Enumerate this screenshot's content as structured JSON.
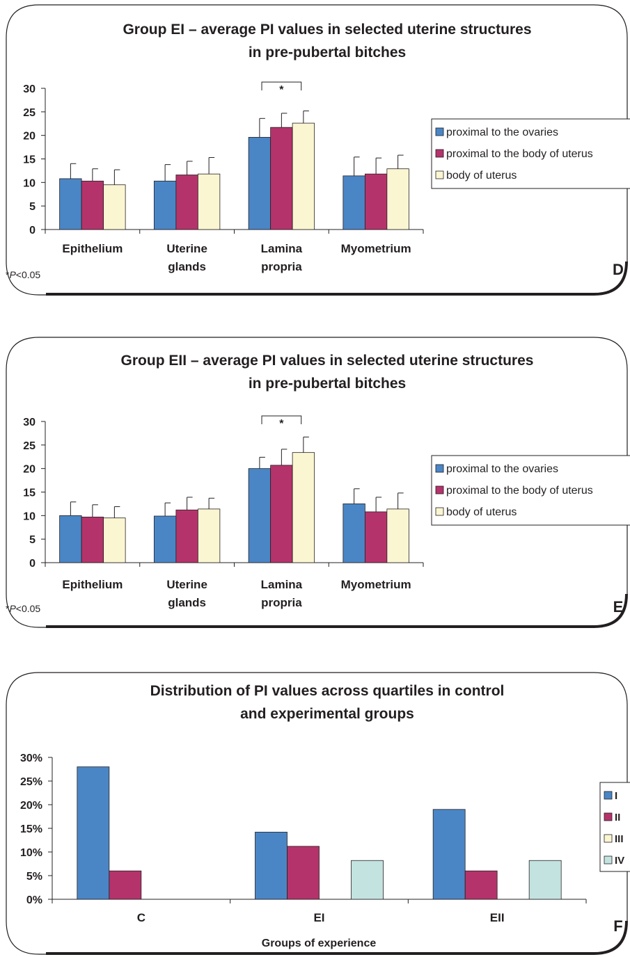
{
  "chart_data": [
    {
      "type": "bar",
      "title": [
        "Group EI – average PI values in selected uterine structures",
        "in pre-pubertal bitches"
      ],
      "xlabel": "",
      "ylabel": "",
      "categories": [
        [
          "Epithelium"
        ],
        [
          "Uterine",
          "glands"
        ],
        [
          "Lamina",
          "propria"
        ],
        [
          "Myometrium"
        ]
      ],
      "series": [
        {
          "name": "proximal to the ovaries",
          "values": [
            10.8,
            10.3,
            19.6,
            11.4
          ],
          "errors": [
            3.2,
            3.5,
            4.0,
            4.0
          ]
        },
        {
          "name": "proximal to the body of uterus",
          "values": [
            10.3,
            11.6,
            21.7,
            11.8
          ],
          "errors": [
            2.6,
            2.9,
            3.0,
            3.4
          ]
        },
        {
          "name": "body of uterus",
          "values": [
            9.5,
            11.8,
            22.6,
            12.9
          ],
          "errors": [
            3.2,
            3.5,
            2.6,
            2.9
          ]
        }
      ],
      "ylim": [
        0,
        30
      ],
      "yticks": [
        "0",
        "5",
        "10",
        "15",
        "20",
        "25",
        "30"
      ],
      "significance": {
        "category": "Lamina propria",
        "label": "*"
      },
      "note": {
        "prefix": "*",
        "italic": "P",
        "suffix": "<0.05"
      },
      "panel_label": "D",
      "legend_position": "right"
    },
    {
      "type": "bar",
      "title": [
        "Group EII – average PI values in selected uterine structures",
        "in pre-pubertal bitches"
      ],
      "xlabel": "",
      "ylabel": "",
      "categories": [
        [
          "Epithelium"
        ],
        [
          "Uterine",
          "glands"
        ],
        [
          "Lamina",
          "propria"
        ],
        [
          "Myometrium"
        ]
      ],
      "series": [
        {
          "name": "proximal to the ovaries",
          "values": [
            10.0,
            9.9,
            20.0,
            12.5
          ],
          "errors": [
            2.9,
            2.8,
            2.4,
            3.2
          ]
        },
        {
          "name": "proximal to the body of uterus",
          "values": [
            9.7,
            11.2,
            20.7,
            10.8
          ],
          "errors": [
            2.6,
            2.7,
            3.4,
            3.1
          ]
        },
        {
          "name": "body of uterus",
          "values": [
            9.5,
            11.4,
            23.4,
            11.4
          ],
          "errors": [
            2.4,
            2.3,
            3.3,
            3.4
          ]
        }
      ],
      "ylim": [
        0,
        30
      ],
      "yticks": [
        "0",
        "5",
        "10",
        "15",
        "20",
        "25",
        "30"
      ],
      "significance": {
        "category": "Lamina propria",
        "label": "*"
      },
      "note": {
        "prefix": "*",
        "italic": "P",
        "suffix": "<0.05"
      },
      "panel_label": "E",
      "legend_position": "right"
    },
    {
      "type": "bar",
      "title": [
        "Distribution of PI values across quartiles in control",
        "and experimental groups"
      ],
      "xlabel": "Groups of experience",
      "ylabel": "",
      "categories": [
        [
          "C"
        ],
        [
          "EI"
        ],
        [
          "EII"
        ]
      ],
      "series": [
        {
          "name": "I",
          "values": [
            28,
            14.2,
            19
          ]
        },
        {
          "name": "II",
          "values": [
            6,
            11.2,
            6
          ]
        },
        {
          "name": "III",
          "values": [
            0,
            0,
            0
          ]
        },
        {
          "name": "IV",
          "values": [
            0,
            8.2,
            8.2
          ]
        }
      ],
      "ylim": [
        0,
        30
      ],
      "yticks": [
        "0%",
        "5%",
        "10%",
        "15%",
        "20%",
        "25%",
        "30%"
      ],
      "panel_label": "F",
      "legend_position": "right"
    }
  ],
  "colors": {
    "series": [
      "#4a86c6",
      "#b5336b",
      "#fbf6d2",
      "#c3e3e0"
    ],
    "text": "#231f20"
  }
}
